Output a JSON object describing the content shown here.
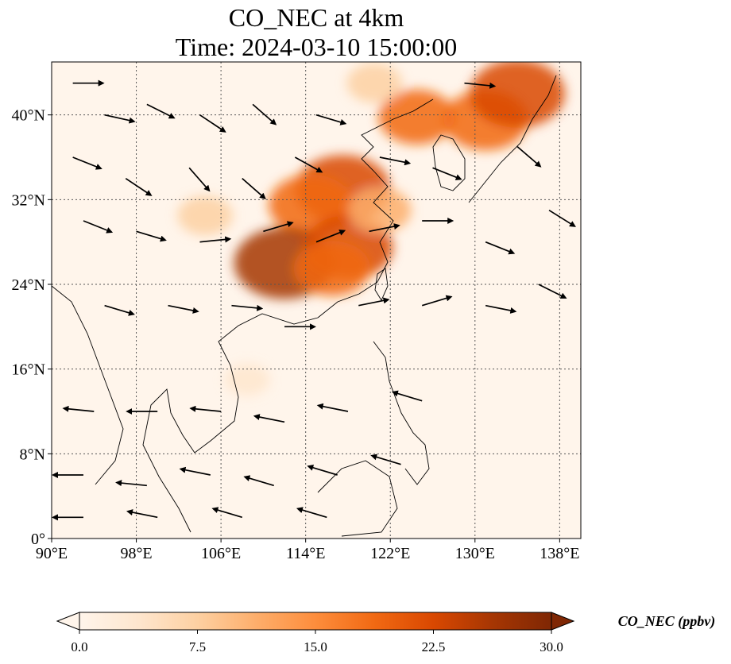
{
  "chart_data": {
    "type": "heatmap",
    "title_line1": "CO_NEC at 4km",
    "title_line2": "Time: 2024-03-10 15:00:00",
    "x_axis": {
      "range": [
        90,
        140
      ],
      "ticks": [
        90,
        98,
        106,
        114,
        122,
        130,
        138
      ],
      "tick_labels": [
        "90°E",
        "98°E",
        "106°E",
        "114°E",
        "122°E",
        "130°E",
        "138°E"
      ]
    },
    "y_axis": {
      "range": [
        0,
        45
      ],
      "ticks": [
        0,
        8,
        16,
        24,
        32,
        40
      ],
      "tick_labels": [
        "0°",
        "8°N",
        "16°N",
        "24°N",
        "32°N",
        "40°N"
      ]
    },
    "grid": true,
    "colorbar": {
      "label": "CO_NEC (ppbv)",
      "range": [
        0,
        30
      ],
      "ticks": [
        0,
        7.5,
        15,
        22.5,
        30
      ],
      "tick_labels": [
        "0.0",
        "7.5",
        "15.0",
        "22.5",
        "30.0"
      ],
      "colormap": [
        "#fff5eb",
        "#fee6ce",
        "#fdd0a2",
        "#fdae6b",
        "#fd8d3c",
        "#f16913",
        "#d94801",
        "#a63603",
        "#7f2704"
      ],
      "extend": "both",
      "placement": "bottom"
    },
    "concentration_blobs": [
      {
        "lon": 117.5,
        "lat": 33.0,
        "value": 24
      },
      {
        "lon": 114.5,
        "lat": 31.5,
        "value": 20
      },
      {
        "lon": 112.0,
        "lat": 26.0,
        "value": 26
      },
      {
        "lon": 118.0,
        "lat": 27.5,
        "value": 22
      },
      {
        "lon": 116.5,
        "lat": 25.5,
        "value": 17
      },
      {
        "lon": 124.5,
        "lat": 39.8,
        "value": 17
      },
      {
        "lon": 131.0,
        "lat": 39.5,
        "value": 20
      },
      {
        "lon": 134.0,
        "lat": 42.0,
        "value": 24
      },
      {
        "lon": 120.5,
        "lat": 43.0,
        "value": 9
      },
      {
        "lon": 104.5,
        "lat": 30.5,
        "value": 9
      },
      {
        "lon": 121.0,
        "lat": 31.0,
        "value": 12
      },
      {
        "lon": 108.5,
        "lat": 15.0,
        "value": 5
      }
    ],
    "wind_vectors": [
      {
        "lon": 92,
        "lat": 43,
        "u": 1.0,
        "v": 0.0
      },
      {
        "lon": 95,
        "lat": 40,
        "u": 0.9,
        "v": -0.2
      },
      {
        "lon": 99,
        "lat": 41,
        "u": 1.0,
        "v": -0.5
      },
      {
        "lon": 104,
        "lat": 40,
        "u": 0.9,
        "v": -0.6
      },
      {
        "lon": 109,
        "lat": 41,
        "u": 0.8,
        "v": -0.7
      },
      {
        "lon": 115,
        "lat": 40,
        "u": 1.0,
        "v": -0.3
      },
      {
        "lon": 92,
        "lat": 36,
        "u": 1.0,
        "v": -0.4
      },
      {
        "lon": 97,
        "lat": 34,
        "u": 0.9,
        "v": -0.6
      },
      {
        "lon": 103,
        "lat": 35,
        "u": 0.7,
        "v": -0.8
      },
      {
        "lon": 108,
        "lat": 34,
        "u": 0.8,
        "v": -0.7
      },
      {
        "lon": 113,
        "lat": 36,
        "u": 0.9,
        "v": -0.5
      },
      {
        "lon": 93,
        "lat": 30,
        "u": 1.0,
        "v": -0.4
      },
      {
        "lon": 98,
        "lat": 29,
        "u": 1.0,
        "v": -0.3
      },
      {
        "lon": 104,
        "lat": 28,
        "u": 1.0,
        "v": 0.1
      },
      {
        "lon": 110,
        "lat": 29,
        "u": 1.0,
        "v": 0.3
      },
      {
        "lon": 115,
        "lat": 28,
        "u": 1.0,
        "v": 0.4
      },
      {
        "lon": 120,
        "lat": 29,
        "u": 1.0,
        "v": 0.2
      },
      {
        "lon": 125,
        "lat": 30,
        "u": 1.0,
        "v": 0.0
      },
      {
        "lon": 121,
        "lat": 36,
        "u": 1.0,
        "v": -0.2
      },
      {
        "lon": 126,
        "lat": 35,
        "u": 1.0,
        "v": -0.4
      },
      {
        "lon": 129,
        "lat": 43,
        "u": 1.0,
        "v": -0.1
      },
      {
        "lon": 134,
        "lat": 37,
        "u": 0.7,
        "v": -0.6
      },
      {
        "lon": 137,
        "lat": 31,
        "u": 0.8,
        "v": -0.5
      },
      {
        "lon": 131,
        "lat": 28,
        "u": 1.0,
        "v": -0.4
      },
      {
        "lon": 95,
        "lat": 22,
        "u": 1.0,
        "v": -0.3
      },
      {
        "lon": 101,
        "lat": 22,
        "u": 1.0,
        "v": -0.2
      },
      {
        "lon": 107,
        "lat": 22,
        "u": 1.0,
        "v": -0.1
      },
      {
        "lon": 112,
        "lat": 20,
        "u": 1.0,
        "v": 0.0
      },
      {
        "lon": 119,
        "lat": 22,
        "u": 1.0,
        "v": 0.2
      },
      {
        "lon": 125,
        "lat": 22,
        "u": 1.0,
        "v": 0.3
      },
      {
        "lon": 131,
        "lat": 22,
        "u": 1.0,
        "v": -0.2
      },
      {
        "lon": 136,
        "lat": 24,
        "u": 1.0,
        "v": -0.5
      },
      {
        "lon": 94,
        "lat": 12,
        "u": -1.0,
        "v": 0.1
      },
      {
        "lon": 100,
        "lat": 12,
        "u": -1.0,
        "v": 0.0
      },
      {
        "lon": 106,
        "lat": 12,
        "u": -1.0,
        "v": 0.1
      },
      {
        "lon": 112,
        "lat": 11,
        "u": -1.0,
        "v": 0.2
      },
      {
        "lon": 118,
        "lat": 12,
        "u": -1.0,
        "v": 0.2
      },
      {
        "lon": 125,
        "lat": 13,
        "u": -1.0,
        "v": 0.3
      },
      {
        "lon": 93,
        "lat": 6,
        "u": -1.0,
        "v": 0.0
      },
      {
        "lon": 99,
        "lat": 5,
        "u": -1.0,
        "v": 0.1
      },
      {
        "lon": 105,
        "lat": 6,
        "u": -1.0,
        "v": 0.2
      },
      {
        "lon": 111,
        "lat": 5,
        "u": -1.0,
        "v": 0.3
      },
      {
        "lon": 117,
        "lat": 6,
        "u": -1.0,
        "v": 0.3
      },
      {
        "lon": 123,
        "lat": 7,
        "u": -1.0,
        "v": 0.3
      },
      {
        "lon": 93,
        "lat": 2,
        "u": -1.0,
        "v": 0.0
      },
      {
        "lon": 100,
        "lat": 2,
        "u": -1.0,
        "v": 0.2
      },
      {
        "lon": 108,
        "lat": 2,
        "u": -1.0,
        "v": 0.3
      },
      {
        "lon": 116,
        "lat": 2,
        "u": -1.0,
        "v": 0.3
      }
    ]
  }
}
